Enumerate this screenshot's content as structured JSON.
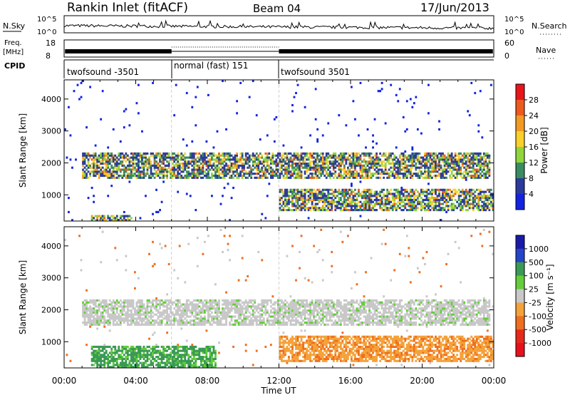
{
  "header": {
    "title": "Rankin Inlet (fitACF)",
    "beam": "Beam 04",
    "date": "17/Jun/2013"
  },
  "summary_panels": {
    "nsky_label": "N.Sky",
    "nsky_ticks": [
      "10^5",
      "10^0"
    ],
    "nsearch_label": "N.Search",
    "nsearch_ticks": [
      "10^5",
      "10^0"
    ],
    "freq_label": "Freq.",
    "freq_unit": "[MHz]",
    "freq_ticks": [
      "18",
      "8"
    ],
    "nave_label": "Nave",
    "nave_ticks": [
      "60",
      "0"
    ],
    "cpid_label": "CPID"
  },
  "cpid_segments": [
    {
      "start_hour": 0,
      "end_hour": 6,
      "label": "twofsound -3501"
    },
    {
      "start_hour": 6,
      "end_hour": 12,
      "label": "normal (fast) 151"
    },
    {
      "start_hour": 12,
      "end_hour": 24,
      "label": "twofsound 3501"
    }
  ],
  "chart_data": [
    {
      "type": "heatmap",
      "name": "power",
      "ylabel": "Slant Range [km]",
      "xlabel": "",
      "x_ticks": [
        "00:00",
        "04:00",
        "08:00",
        "12:00",
        "16:00",
        "20:00",
        "00:00"
      ],
      "xlim": [
        0,
        24
      ],
      "y_ticks": [
        1000,
        2000,
        3000,
        4000
      ],
      "ylim": [
        180,
        4600
      ],
      "colorbar": {
        "label": "Power [dB]",
        "tick_labels": [
          "28",
          "24",
          "20",
          "16",
          "12",
          "8",
          "4"
        ],
        "colors": [
          "#e8151b",
          "#ee5a1e",
          "#f39a24",
          "#fcd02a",
          "#8fd63d",
          "#3a8a62",
          "#2c3a9c",
          "#1323e2"
        ]
      },
      "features": [
        {
          "range_km": [
            1500,
            2300
          ],
          "hours": [
            1.0,
            23.8
          ],
          "description": "main scatter band"
        },
        {
          "range_km": [
            500,
            1200
          ],
          "hours": [
            12.0,
            24.0
          ],
          "description": "lower scatter band"
        },
        {
          "range_km": [
            180,
            400
          ],
          "hours": [
            1.5,
            3.8
          ],
          "description": "near-range echoes"
        }
      ]
    },
    {
      "type": "heatmap",
      "name": "velocity",
      "ylabel": "Slant Range [km]",
      "xlabel": "Time UT",
      "x_ticks": [
        "00:00",
        "04:00",
        "08:00",
        "12:00",
        "16:00",
        "20:00",
        "00:00"
      ],
      "xlim": [
        0,
        24
      ],
      "y_ticks": [
        1000,
        2000,
        3000,
        4000
      ],
      "ylim": [
        180,
        4600
      ],
      "colorbar": {
        "label": "Velocity [m s⁻¹]",
        "tick_labels": [
          "1000",
          "500",
          "100",
          "25",
          "-25",
          "-100",
          "-500",
          "-1000"
        ],
        "colors": [
          "#1a1aa8",
          "#2545c8",
          "#3a9a55",
          "#65cd3a",
          "#c8c8c8",
          "#f4a23a",
          "#ee6f1f",
          "#e8281b",
          "#e8101b"
        ]
      },
      "features": [
        {
          "range_km": [
            1500,
            2300
          ],
          "hours": [
            1.0,
            23.8
          ],
          "description": "ground scatter (grey, near zero)"
        },
        {
          "range_km": [
            180,
            900
          ],
          "hours": [
            1.5,
            8.5
          ],
          "description": "positive velocities (green)"
        },
        {
          "range_km": [
            400,
            1200
          ],
          "hours": [
            12.0,
            24.0
          ],
          "description": "negative velocities (orange)"
        }
      ]
    }
  ]
}
